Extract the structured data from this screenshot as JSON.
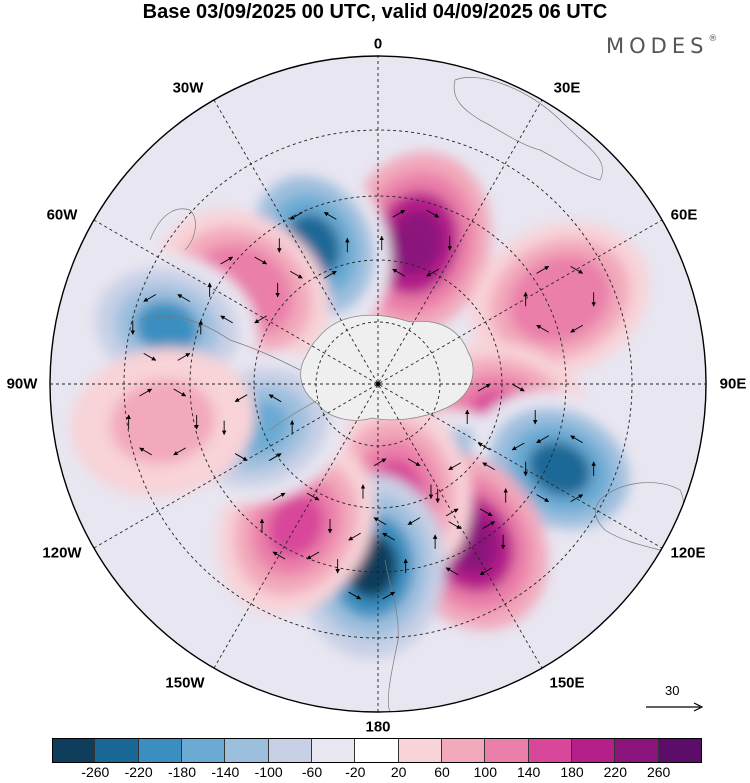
{
  "title": "Base 03/09/2025 00 UTC, valid 04/09/2025 06 UTC",
  "brand": {
    "name": "MODES",
    "mark": "®"
  },
  "longitude_labels": [
    {
      "key": "lon-0",
      "text": "0"
    },
    {
      "key": "lon-30e",
      "text": "30E"
    },
    {
      "key": "lon-60e",
      "text": "60E"
    },
    {
      "key": "lon-90e",
      "text": "90E"
    },
    {
      "key": "lon-120e",
      "text": "120E"
    },
    {
      "key": "lon-150e",
      "text": "150E"
    },
    {
      "key": "lon-180",
      "text": "180"
    },
    {
      "key": "lon-150w",
      "text": "150W"
    },
    {
      "key": "lon-120w",
      "text": "120W"
    },
    {
      "key": "lon-90w",
      "text": "90W"
    },
    {
      "key": "lon-60w",
      "text": "60W"
    },
    {
      "key": "lon-30w",
      "text": "30W"
    }
  ],
  "reference_vector": {
    "label": "30"
  },
  "colorbar": {
    "colors": [
      "#0f3d5c",
      "#1a6896",
      "#3b8fc0",
      "#6aaad3",
      "#9dbfde",
      "#c8d0e6",
      "#e8e6f1",
      "#ffffff",
      "#f8d3d8",
      "#f2a9bb",
      "#ea7fa9",
      "#d8479a",
      "#b41f8a",
      "#8a137c",
      "#5c0c69"
    ],
    "ticks": [
      "-260",
      "-220",
      "-180",
      "-140",
      "-100",
      "-60",
      "-20",
      "20",
      "60",
      "100",
      "140",
      "180",
      "220",
      "260"
    ]
  },
  "chart_data": {
    "type": "heatmap",
    "projection": "south-polar-stereographic",
    "field": "anomaly with wind vectors (streamlines/arrows)",
    "title": "Base 03/09/2025 00 UTC, valid 04/09/2025 06 UTC",
    "colorbar_levels": [
      -260,
      -220,
      -180,
      -140,
      -100,
      -60,
      -20,
      20,
      60,
      100,
      140,
      180,
      220,
      260
    ],
    "features": [
      {
        "name": "positive-center-near-0",
        "value": 260,
        "lon": 15,
        "lat": -50
      },
      {
        "name": "negative-center-near-30w",
        "value": -220,
        "lon": -25,
        "lat": -48
      },
      {
        "name": "positive-center-60w",
        "value": 140,
        "lon": -55,
        "lat": -45
      },
      {
        "name": "negative-center-90w",
        "value": -180,
        "lon": -75,
        "lat": -30
      },
      {
        "name": "positive-center-60e",
        "value": 140,
        "lon": 65,
        "lat": -35
      },
      {
        "name": "positive-center-100e",
        "value": 180,
        "lon": 105,
        "lat": -55
      },
      {
        "name": "negative-center-130e",
        "value": -220,
        "lon": 140,
        "lat": -50
      },
      {
        "name": "negative-center-110e",
        "value": -220,
        "lon": 115,
        "lat": -35
      },
      {
        "name": "positive-center-150e",
        "value": 260,
        "lon": 150,
        "lat": -40
      },
      {
        "name": "positive-center-170e",
        "value": 180,
        "lon": 170,
        "lat": -60
      },
      {
        "name": "negative-center-180",
        "value": -260,
        "lon": -178,
        "lat": -40
      },
      {
        "name": "positive-center-150w",
        "value": 180,
        "lon": -150,
        "lat": -45
      },
      {
        "name": "negative-center-110w",
        "value": -140,
        "lon": -110,
        "lat": -55
      },
      {
        "name": "positive-center-100w",
        "value": 100,
        "lon": -100,
        "lat": -30
      }
    ]
  }
}
